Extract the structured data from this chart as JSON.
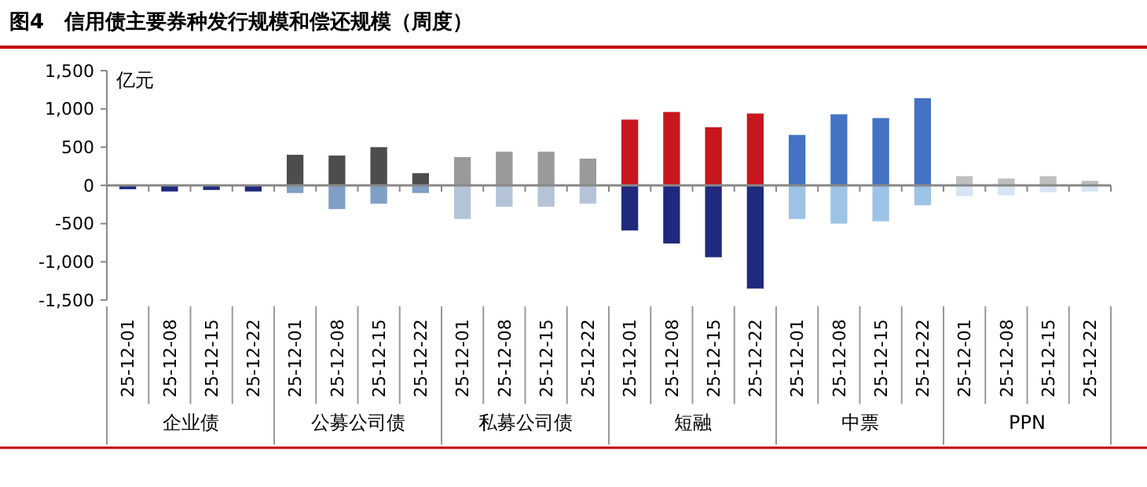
{
  "chart_data": {
    "type": "bar",
    "title": "图4　信用债主要券种发行规模和偿还规模（周度）",
    "ylabel": "亿元",
    "stacked": true,
    "categories": [
      "25-12-01",
      "25-12-08",
      "25-12-15",
      "25-12-22",
      "25-12-01",
      "25-12-08",
      "25-12-15",
      "25-12-22",
      "25-12-01",
      "25-12-08",
      "25-12-15",
      "25-12-22",
      "25-12-01",
      "25-12-08",
      "25-12-15",
      "25-12-22",
      "25-12-01",
      "25-12-08",
      "25-12-15",
      "25-12-22",
      "25-12-01",
      "25-12-08",
      "25-12-15",
      "25-12-22"
    ],
    "annotations": [
      "企业债",
      "公募公司债",
      "私募公司债",
      "短融",
      "中票",
      "PPN"
    ],
    "series": [
      {
        "values": [
          null,
          null,
          null,
          null,
          400,
          390,
          500,
          160,
          370,
          440,
          440,
          350,
          860,
          960,
          760,
          940,
          660,
          930,
          880,
          1140,
          120,
          90,
          120,
          60
        ],
        "colors": [
          null,
          null,
          null,
          null,
          "#4d4d4d",
          "#4d4d4d",
          "#4d4d4d",
          "#4d4d4d",
          "#9a9a9a",
          "#9a9a9a",
          "#9a9a9a",
          "#9a9a9a",
          "#c8161e",
          "#c8161e",
          "#c8161e",
          "#c8161e",
          "#4472c4",
          "#4472c4",
          "#4472c4",
          "#4472c4",
          "#bfbfbf",
          "#bfbfbf",
          "#bfbfbf",
          "#bfbfbf"
        ]
      },
      {
        "values": [
          -50,
          -80,
          -60,
          -80,
          -100,
          -310,
          -240,
          -100,
          -440,
          -280,
          -280,
          -240,
          -590,
          -760,
          -940,
          -1350,
          -440,
          -500,
          -470,
          -260,
          -140,
          -130,
          -90,
          -80
        ],
        "colors": [
          "#1f2a7c",
          "#1f2a7c",
          "#1f2a7c",
          "#1f2a7c",
          "#7f9fc4",
          "#7f9fc4",
          "#7f9fc4",
          "#7f9fc4",
          "#b4c4d6",
          "#b4c4d6",
          "#b4c4d6",
          "#b4c4d6",
          "#1f2a7c",
          "#1f2a7c",
          "#1f2a7c",
          "#1f2a7c",
          "#9dc3e6",
          "#9dc3e6",
          "#9dc3e6",
          "#9dc3e6",
          "#d6e4f4",
          "#d6e4f4",
          "#d6e4f4",
          "#d6e4f4"
        ]
      }
    ],
    "ylim": [
      -1500,
      1500
    ],
    "yticks": [
      {
        "value": -1500,
        "label": "-1,500"
      },
      {
        "value": -1000,
        "label": "-1,000"
      },
      -500,
      0,
      500,
      {
        "value": 1000,
        "label": "1,000"
      },
      {
        "value": 1500,
        "label": "1,500"
      }
    ]
  }
}
